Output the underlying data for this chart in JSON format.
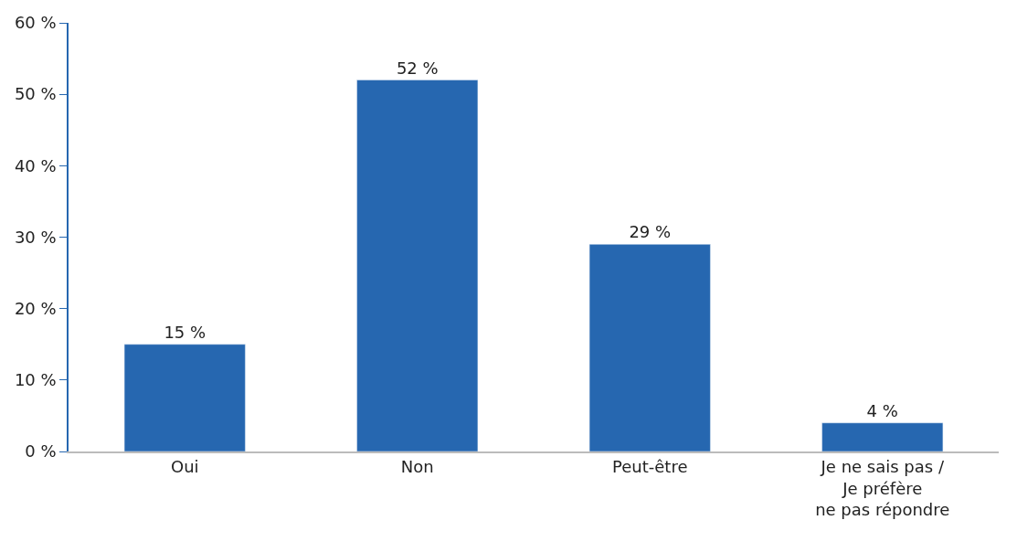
{
  "chart_data": {
    "type": "bar",
    "categories": [
      "Oui",
      "Non",
      "Peut-être",
      "Je ne sais pas /\nJe préfère\nne pas répondre"
    ],
    "values": [
      15,
      52,
      29,
      4
    ],
    "value_labels": [
      "15 %",
      "52 %",
      "29 %",
      "4 %"
    ],
    "color": "#2667b0",
    "ylim": [
      0,
      60
    ],
    "yticks": [
      {
        "value": 0,
        "label": "0 %"
      },
      {
        "value": 10,
        "label": "10 %"
      },
      {
        "value": 20,
        "label": "20 %"
      },
      {
        "value": 30,
        "label": "30 %"
      },
      {
        "value": 40,
        "label": "40 %"
      },
      {
        "value": 50,
        "label": "50 %"
      },
      {
        "value": 60,
        "label": "60 %"
      }
    ],
    "legend": false
  }
}
